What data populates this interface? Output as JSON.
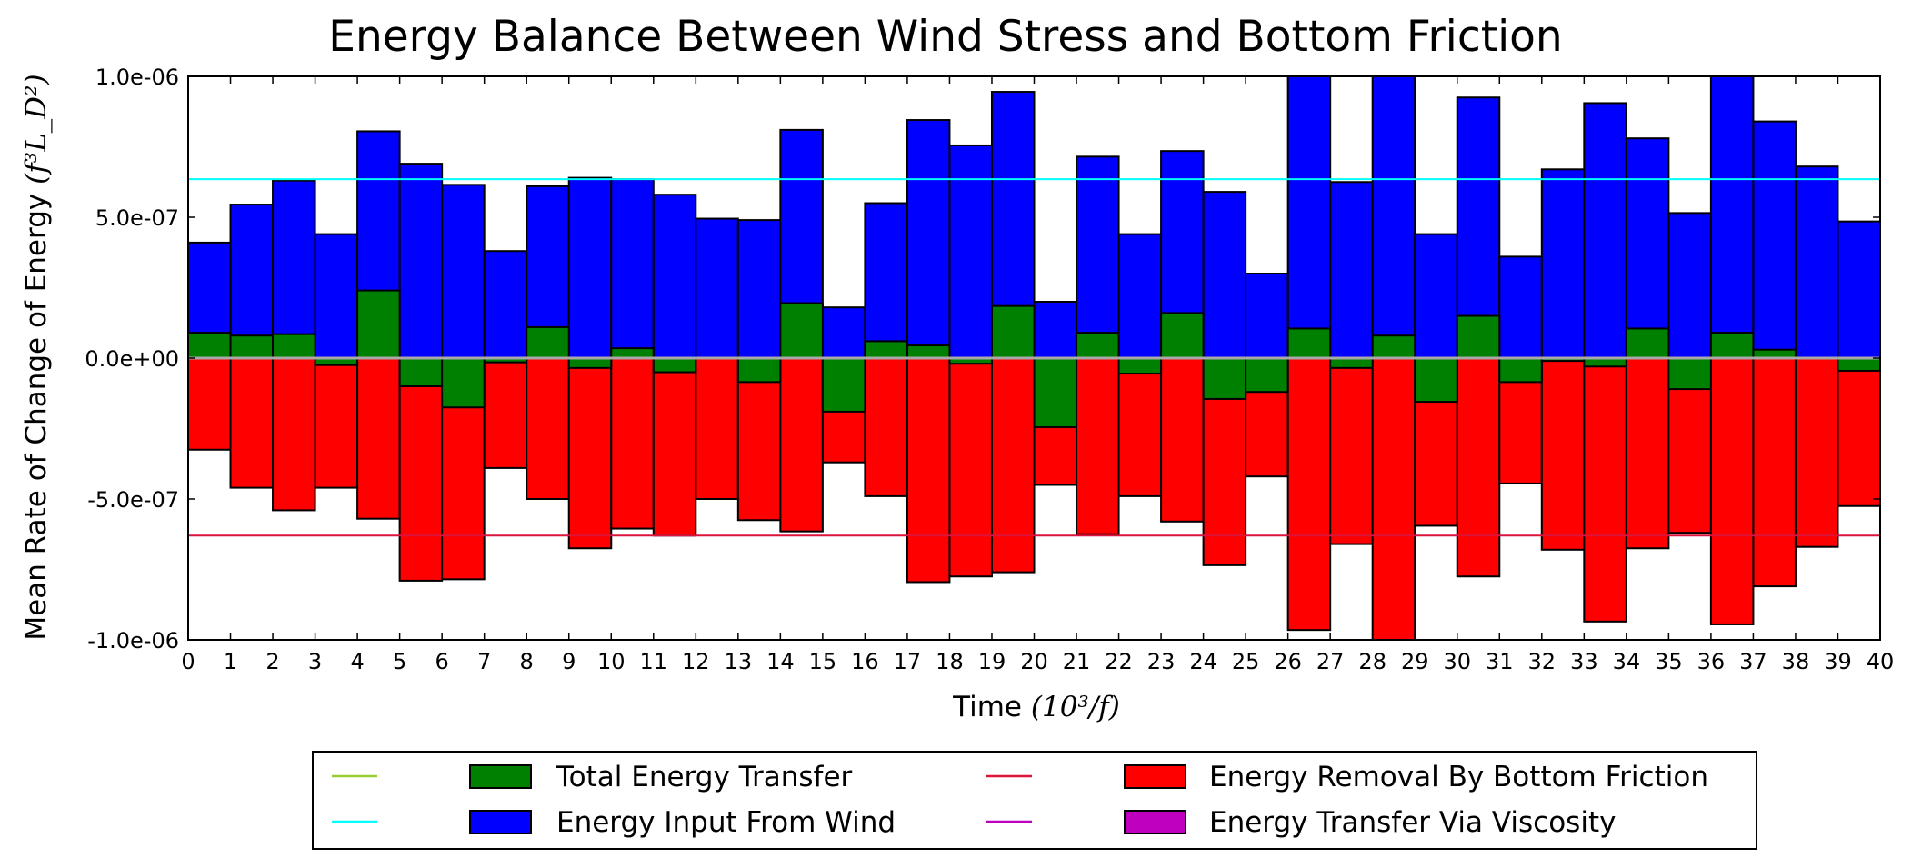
{
  "chart_data": {
    "type": "bar",
    "title": "Energy Balance Between Wind Stress and Bottom Friction",
    "xlabel": {
      "text": "Time ",
      "math": "(10³/f)"
    },
    "ylabel": {
      "text": "Mean Rate of Change of Energy ",
      "math": "(f³L_D²)"
    },
    "xlim": [
      0,
      40
    ],
    "ylim": [
      -1e-06,
      1e-06
    ],
    "xticks": [
      "0",
      "1",
      "2",
      "3",
      "4",
      "5",
      "6",
      "7",
      "8",
      "9",
      "10",
      "11",
      "12",
      "13",
      "14",
      "15",
      "16",
      "17",
      "18",
      "19",
      "20",
      "21",
      "22",
      "23",
      "24",
      "25",
      "26",
      "27",
      "28",
      "29",
      "30",
      "31",
      "32",
      "33",
      "34",
      "35",
      "36",
      "37",
      "38",
      "39",
      "40"
    ],
    "yticks": [
      {
        "value": 1e-06,
        "label": "1.0e-06"
      },
      {
        "value": 5e-07,
        "label": "5.0e-07"
      },
      {
        "value": 0,
        "label": "0.0e+00"
      },
      {
        "value": -5e-07,
        "label": "-5.0e-07"
      },
      {
        "value": -1e-06,
        "label": "-1.0e-06"
      }
    ],
    "bar_starts": [
      0,
      1,
      2,
      3,
      4,
      5,
      6,
      7,
      8,
      9,
      10,
      11,
      12,
      13,
      14,
      15,
      16,
      17,
      18,
      19,
      20,
      21,
      22,
      23,
      24,
      25,
      26,
      27,
      28,
      29,
      30,
      31,
      32,
      33,
      34,
      35,
      36,
      37,
      38,
      39
    ],
    "bar_width": 1,
    "grid": false,
    "legend_position": "below",
    "series": [
      {
        "name": "Energy Input From Wind",
        "color": "#0000ff",
        "values": [
          4.1e-07,
          5.45e-07,
          6.3e-07,
          4.4e-07,
          8.05e-07,
          6.9e-07,
          6.15e-07,
          3.8e-07,
          6.1e-07,
          6.4e-07,
          6.35e-07,
          5.8e-07,
          4.95e-07,
          4.9e-07,
          8.1e-07,
          1.8e-07,
          5.5e-07,
          8.45e-07,
          7.55e-07,
          9.45e-07,
          2e-07,
          7.15e-07,
          4.4e-07,
          7.35e-07,
          5.9e-07,
          3e-07,
          1e-06,
          6.25e-07,
          1e-06,
          4.4e-07,
          9.25e-07,
          3.6e-07,
          6.7e-07,
          9.05e-07,
          7.8e-07,
          5.15e-07,
          1e-06,
          8.4e-07,
          6.8e-07,
          4.85e-07
        ]
      },
      {
        "name": "Energy Removal By Bottom Friction",
        "color": "#ff0000",
        "values": [
          -3.25e-07,
          -4.6e-07,
          -5.4e-07,
          -4.6e-07,
          -5.7e-07,
          -7.9e-07,
          -7.85e-07,
          -3.9e-07,
          -5e-07,
          -6.75e-07,
          -6.05e-07,
          -6.3e-07,
          -5e-07,
          -5.75e-07,
          -6.15e-07,
          -3.7e-07,
          -4.9e-07,
          -7.95e-07,
          -7.75e-07,
          -7.6e-07,
          -4.5e-07,
          -6.25e-07,
          -4.9e-07,
          -5.8e-07,
          -7.35e-07,
          -4.2e-07,
          -9.65e-07,
          -6.6e-07,
          -1e-06,
          -5.95e-07,
          -7.75e-07,
          -4.45e-07,
          -6.8e-07,
          -9.35e-07,
          -6.75e-07,
          -6.2e-07,
          -9.45e-07,
          -8.1e-07,
          -6.7e-07,
          -5.25e-07
        ]
      },
      {
        "name": "Total Energy Transfer",
        "color": "#008000",
        "values": [
          9e-08,
          8e-08,
          8.5e-08,
          -2.5e-08,
          2.4e-07,
          -1e-07,
          -1.75e-07,
          -1.5e-08,
          1.1e-07,
          -3.5e-08,
          3.5e-08,
          -5e-08,
          0,
          -8.5e-08,
          1.95e-07,
          -1.9e-07,
          6e-08,
          4.5e-08,
          -2e-08,
          1.85e-07,
          -2.45e-07,
          9e-08,
          -5.5e-08,
          1.6e-07,
          -1.45e-07,
          -1.2e-07,
          1.05e-07,
          -3.5e-08,
          8e-08,
          -1.55e-07,
          1.5e-07,
          -8.5e-08,
          -1e-08,
          -3e-08,
          1.05e-07,
          -1.1e-07,
          9e-08,
          3e-08,
          0,
          -4.5e-08
        ]
      },
      {
        "name": "Energy Transfer Via Viscosity",
        "color": "#bf00bf",
        "values": []
      }
    ],
    "hlines": [
      {
        "value": 6.35e-07,
        "color": "#00ffff",
        "label": "Energy Input From Wind"
      },
      {
        "value": -6.3e-07,
        "color": "#dc143c",
        "label": "Energy Removal By Bottom Friction"
      },
      {
        "value": 0,
        "color": "#9acd32",
        "label": "Total Energy Transfer"
      },
      {
        "value": 0,
        "color": "#bf00bf",
        "label": "Energy Transfer Via Viscosity"
      }
    ],
    "legend": [
      {
        "kind": "line",
        "color": "#9acd32",
        "text": ""
      },
      {
        "kind": "bar",
        "color": "#008000",
        "text": "Total Energy Transfer"
      },
      {
        "kind": "line",
        "color": "#dc143c",
        "text": ""
      },
      {
        "kind": "bar",
        "color": "#ff0000",
        "text": "Energy Removal By Bottom Friction"
      },
      {
        "kind": "line",
        "color": "#00ffff",
        "text": ""
      },
      {
        "kind": "bar",
        "color": "#0000ff",
        "text": "Energy Input From Wind"
      },
      {
        "kind": "line",
        "color": "#bf00bf",
        "text": ""
      },
      {
        "kind": "bar",
        "color": "#bf00bf",
        "text": "Energy Transfer Via Viscosity"
      }
    ]
  }
}
